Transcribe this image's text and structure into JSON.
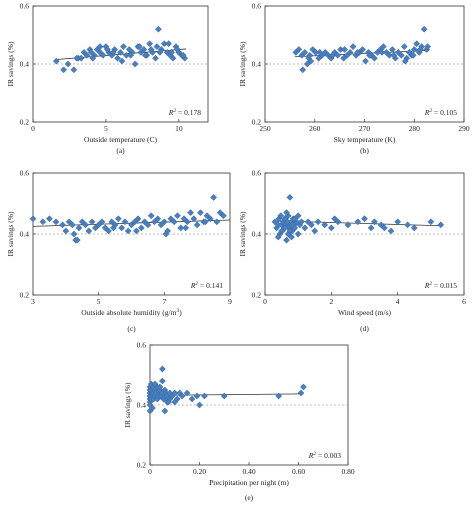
{
  "chart_data": [
    {
      "type": "scatter",
      "panel": "(a)",
      "xlabel": "Outside temperature (C)",
      "ylabel": "IR savings (%)",
      "xlim": [
        0,
        12
      ],
      "ylim": [
        0.2,
        0.6
      ],
      "xticks": [
        "0",
        "5",
        "10"
      ],
      "yticks": [
        "0.2",
        "0.4",
        "0.6"
      ],
      "r2_label": "R",
      "r2_value": "= 0.178",
      "ref_line": 0.4,
      "trend": {
        "x": [
          1.5,
          10.5
        ],
        "y": [
          0.415,
          0.452
        ]
      },
      "x": [
        1.6,
        2.1,
        2.4,
        2.8,
        3.1,
        3.3,
        3.5,
        3.7,
        3.9,
        4.0,
        4.2,
        4.4,
        4.6,
        4.8,
        5.0,
        5.2,
        5.4,
        5.6,
        5.8,
        6.0,
        6.2,
        6.4,
        6.6,
        6.8,
        7.0,
        7.2,
        7.4,
        7.6,
        7.8,
        8.0,
        8.2,
        8.4,
        8.6,
        8.8,
        9.0,
        9.2,
        9.4,
        9.6,
        9.8,
        10.0,
        10.2,
        10.4,
        4.1,
        5.5,
        6.7,
        7.3,
        8.1,
        8.7,
        9.3,
        9.9,
        10.3,
        6.1,
        7.7,
        8.5,
        9.5,
        5.1,
        4.6,
        3.0
      ],
      "y": [
        0.41,
        0.38,
        0.4,
        0.38,
        0.42,
        0.42,
        0.44,
        0.43,
        0.45,
        0.44,
        0.43,
        0.45,
        0.44,
        0.43,
        0.46,
        0.44,
        0.43,
        0.45,
        0.42,
        0.44,
        0.46,
        0.43,
        0.45,
        0.44,
        0.4,
        0.46,
        0.44,
        0.45,
        0.43,
        0.47,
        0.44,
        0.42,
        0.52,
        0.45,
        0.47,
        0.44,
        0.43,
        0.42,
        0.46,
        0.44,
        0.43,
        0.42,
        0.42,
        0.44,
        0.43,
        0.46,
        0.45,
        0.44,
        0.47,
        0.45,
        0.43,
        0.41,
        0.43,
        0.46,
        0.44,
        0.45,
        0.46,
        0.42
      ]
    },
    {
      "type": "scatter",
      "panel": "(b)",
      "xlabel": "Sky temperature (K)",
      "ylabel": "IR savings (%)",
      "xlim": [
        250,
        290
      ],
      "ylim": [
        0.2,
        0.6
      ],
      "xticks": [
        "250",
        "260",
        "270",
        "280",
        "290"
      ],
      "yticks": [
        "0.2",
        "0.4",
        "0.6"
      ],
      "r2_label": "R",
      "r2_value": "= 0.105",
      "ref_line": 0.4,
      "trend": {
        "x": [
          256,
          283
        ],
        "y": [
          0.425,
          0.447
        ]
      },
      "x": [
        256.2,
        256.8,
        257.4,
        258.0,
        258.5,
        259.0,
        259.6,
        260.2,
        260.8,
        261.5,
        262.1,
        262.7,
        263.3,
        264.0,
        264.6,
        265.2,
        265.8,
        266.5,
        267.1,
        267.7,
        268.3,
        269.0,
        269.6,
        270.2,
        270.8,
        271.4,
        272.0,
        272.6,
        273.2,
        273.8,
        274.4,
        275.0,
        275.6,
        276.2,
        276.8,
        277.4,
        278.0,
        278.5,
        279.0,
        279.5,
        280.0,
        280.5,
        281.0,
        281.5,
        282.0,
        282.5,
        257.6,
        259.2,
        261.0,
        263.6,
        266.0,
        268.6,
        271.0,
        273.5,
        275.9,
        278.2,
        279.8,
        281.2,
        282.7,
        258.8
      ],
      "y": [
        0.44,
        0.45,
        0.43,
        0.44,
        0.4,
        0.43,
        0.45,
        0.44,
        0.42,
        0.43,
        0.44,
        0.43,
        0.42,
        0.44,
        0.43,
        0.45,
        0.42,
        0.43,
        0.44,
        0.46,
        0.43,
        0.44,
        0.45,
        0.41,
        0.44,
        0.43,
        0.42,
        0.44,
        0.45,
        0.46,
        0.44,
        0.43,
        0.45,
        0.42,
        0.44,
        0.43,
        0.46,
        0.42,
        0.44,
        0.43,
        0.45,
        0.47,
        0.44,
        0.46,
        0.52,
        0.45,
        0.38,
        0.41,
        0.44,
        0.43,
        0.45,
        0.44,
        0.43,
        0.44,
        0.43,
        0.41,
        0.43,
        0.45,
        0.46,
        0.42
      ]
    },
    {
      "type": "scatter",
      "panel": "(c)",
      "xlabel": "Outside absolute humidity (g/m",
      "xlabel_sup": "3",
      "xlabel_end": ")",
      "ylabel": "IR savings (%)",
      "xlim": [
        3,
        9
      ],
      "ylim": [
        0.2,
        0.6
      ],
      "xticks": [
        "3",
        "5",
        "7",
        "9"
      ],
      "yticks": [
        "0.2",
        "0.4",
        "0.6"
      ],
      "r2_label": "R",
      "r2_value": "= 0.141",
      "ref_line": 0.4,
      "trend": {
        "x": [
          3,
          9
        ],
        "y": [
          0.425,
          0.446
        ]
      },
      "x": [
        3.0,
        3.3,
        3.5,
        3.7,
        3.9,
        4.0,
        4.1,
        4.2,
        4.3,
        4.4,
        4.5,
        4.6,
        4.7,
        4.8,
        4.9,
        5.0,
        5.1,
        5.2,
        5.3,
        5.4,
        5.5,
        5.6,
        5.7,
        5.8,
        5.9,
        6.0,
        6.1,
        6.2,
        6.3,
        6.4,
        6.5,
        6.6,
        6.7,
        6.8,
        6.9,
        7.0,
        7.1,
        7.2,
        7.3,
        7.4,
        7.5,
        7.6,
        7.7,
        7.8,
        7.9,
        8.0,
        8.1,
        8.2,
        8.3,
        8.4,
        8.5,
        8.6,
        8.7,
        8.8,
        4.25,
        4.35,
        5.45,
        6.15,
        7.05,
        7.65,
        8.25
      ],
      "y": [
        0.45,
        0.44,
        0.45,
        0.44,
        0.43,
        0.41,
        0.44,
        0.43,
        0.38,
        0.42,
        0.44,
        0.43,
        0.41,
        0.44,
        0.42,
        0.43,
        0.44,
        0.42,
        0.41,
        0.44,
        0.43,
        0.45,
        0.42,
        0.44,
        0.41,
        0.43,
        0.44,
        0.45,
        0.42,
        0.44,
        0.43,
        0.46,
        0.44,
        0.45,
        0.43,
        0.44,
        0.41,
        0.45,
        0.44,
        0.46,
        0.42,
        0.45,
        0.44,
        0.47,
        0.45,
        0.43,
        0.47,
        0.44,
        0.46,
        0.45,
        0.52,
        0.44,
        0.47,
        0.46,
        0.4,
        0.38,
        0.42,
        0.41,
        0.4,
        0.42,
        0.44
      ]
    },
    {
      "type": "scatter",
      "panel": "(d)",
      "xlabel": "Wind speed (m/s)",
      "ylabel": "IR savings (%)",
      "xlim": [
        0,
        6
      ],
      "ylim": [
        0.2,
        0.6
      ],
      "xticks": [
        "0",
        "2",
        "4",
        "6"
      ],
      "yticks": [
        "0.2",
        "0.4",
        "0.6"
      ],
      "r2_label": "R",
      "r2_value": "= 0.015",
      "ref_line": 0.4,
      "trend": {
        "x": [
          0.3,
          5.3
        ],
        "y": [
          0.443,
          0.427
        ]
      },
      "x": [
        0.3,
        0.35,
        0.4,
        0.42,
        0.45,
        0.48,
        0.5,
        0.52,
        0.55,
        0.58,
        0.6,
        0.62,
        0.65,
        0.68,
        0.7,
        0.72,
        0.75,
        0.78,
        0.8,
        0.82,
        0.85,
        0.88,
        0.9,
        0.95,
        1.0,
        1.05,
        1.1,
        1.2,
        1.3,
        1.4,
        1.5,
        1.6,
        1.8,
        2.0,
        2.2,
        2.5,
        2.8,
        3.0,
        3.2,
        3.5,
        3.8,
        4.0,
        4.3,
        4.5,
        5.0,
        5.3,
        0.4,
        0.5,
        0.6,
        0.7,
        0.8,
        0.9,
        1.0,
        0.65,
        0.75,
        3.3,
        3.6,
        2.1
      ],
      "y": [
        0.44,
        0.42,
        0.43,
        0.45,
        0.4,
        0.46,
        0.43,
        0.41,
        0.44,
        0.42,
        0.45,
        0.43,
        0.38,
        0.44,
        0.46,
        0.42,
        0.52,
        0.43,
        0.44,
        0.41,
        0.45,
        0.43,
        0.42,
        0.44,
        0.4,
        0.43,
        0.44,
        0.42,
        0.44,
        0.43,
        0.41,
        0.44,
        0.43,
        0.42,
        0.44,
        0.43,
        0.44,
        0.45,
        0.42,
        0.43,
        0.41,
        0.44,
        0.43,
        0.42,
        0.44,
        0.43,
        0.39,
        0.41,
        0.42,
        0.4,
        0.39,
        0.45,
        0.46,
        0.47,
        0.41,
        0.44,
        0.42,
        0.45
      ]
    },
    {
      "type": "scatter",
      "panel": "(e)",
      "xlabel": "Precipitation per night (m)",
      "ylabel": "IR savings (%)",
      "xlim": [
        0,
        0.8
      ],
      "ylim": [
        0.2,
        0.6
      ],
      "xticks": [
        "0",
        "0.20",
        "0.40",
        "0.60",
        "0.80"
      ],
      "yticks": [
        "0.2",
        "0.4",
        "0.6"
      ],
      "r2_label": "R",
      "r2_value": "= 0.003",
      "ref_line": 0.4,
      "trend": {
        "x": [
          0,
          0.62
        ],
        "y": [
          0.432,
          0.437
        ]
      },
      "x": [
        0,
        0,
        0,
        0,
        0,
        0,
        0,
        0,
        0,
        0,
        0.005,
        0.005,
        0.01,
        0.01,
        0.012,
        0.015,
        0.015,
        0.02,
        0.02,
        0.025,
        0.03,
        0.03,
        0.035,
        0.04,
        0.04,
        0.045,
        0.05,
        0.05,
        0.055,
        0.06,
        0.06,
        0.065,
        0.07,
        0.07,
        0.08,
        0.08,
        0.09,
        0.1,
        0.1,
        0.11,
        0.12,
        0.13,
        0.15,
        0.17,
        0.19,
        0.2,
        0.22,
        0.3,
        0.52,
        0.61,
        0.62,
        0.005,
        0.02,
        0.04,
        0.06,
        0.075,
        0.05,
        0.01
      ],
      "y": [
        0.43,
        0.44,
        0.42,
        0.45,
        0.41,
        0.46,
        0.4,
        0.44,
        0.43,
        0.38,
        0.45,
        0.42,
        0.44,
        0.43,
        0.46,
        0.42,
        0.44,
        0.43,
        0.45,
        0.44,
        0.42,
        0.46,
        0.43,
        0.44,
        0.45,
        0.43,
        0.52,
        0.44,
        0.42,
        0.43,
        0.45,
        0.44,
        0.41,
        0.43,
        0.44,
        0.42,
        0.43,
        0.44,
        0.41,
        0.42,
        0.44,
        0.43,
        0.44,
        0.42,
        0.43,
        0.4,
        0.43,
        0.43,
        0.43,
        0.44,
        0.46,
        0.47,
        0.47,
        0.46,
        0.38,
        0.41,
        0.48,
        0.39
      ]
    }
  ]
}
